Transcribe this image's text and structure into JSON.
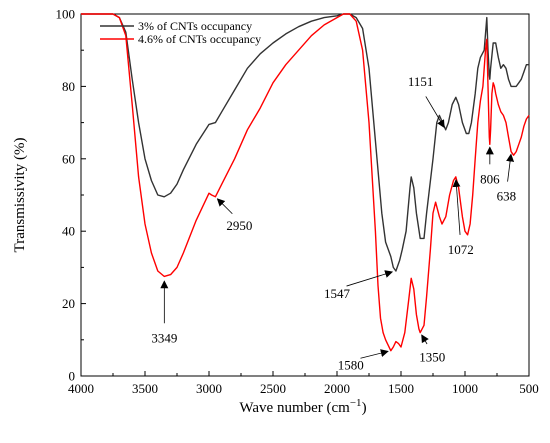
{
  "chart_data": {
    "type": "line",
    "title": "",
    "xlabel": "Wave number",
    "xlabel_unit": "(cm",
    "xlabel_unit_exp": "−1",
    "xlabel_unit_close": ")",
    "ylabel": "Transmissivity (%)",
    "xlim": [
      4000,
      500
    ],
    "ylim": [
      0,
      100
    ],
    "x_reversed": true,
    "x_ticks": [
      4000,
      3500,
      3000,
      2500,
      2000,
      1500,
      1000,
      500
    ],
    "y_ticks": [
      0,
      20,
      40,
      60,
      80,
      100
    ],
    "grid": false,
    "legend_position": "top-left",
    "series": [
      {
        "name": "3% of CNTs occupancy",
        "color": "#333333",
        "points": [
          [
            4000,
            100
          ],
          [
            3750,
            100
          ],
          [
            3700,
            99
          ],
          [
            3650,
            95
          ],
          [
            3600,
            82
          ],
          [
            3550,
            70
          ],
          [
            3500,
            60
          ],
          [
            3450,
            54
          ],
          [
            3400,
            50
          ],
          [
            3350,
            49.5
          ],
          [
            3300,
            50.5
          ],
          [
            3250,
            53
          ],
          [
            3200,
            57
          ],
          [
            3100,
            64
          ],
          [
            3000,
            69.5
          ],
          [
            2950,
            70
          ],
          [
            2900,
            73
          ],
          [
            2800,
            79
          ],
          [
            2700,
            85
          ],
          [
            2600,
            89
          ],
          [
            2500,
            92
          ],
          [
            2400,
            94.5
          ],
          [
            2300,
            96.5
          ],
          [
            2200,
            98
          ],
          [
            2100,
            99
          ],
          [
            2000,
            99.5
          ],
          [
            1950,
            100
          ],
          [
            1900,
            100
          ],
          [
            1850,
            99
          ],
          [
            1800,
            96
          ],
          [
            1750,
            85
          ],
          [
            1700,
            65
          ],
          [
            1650,
            45
          ],
          [
            1620,
            37
          ],
          [
            1580,
            33
          ],
          [
            1560,
            30
          ],
          [
            1540,
            29
          ],
          [
            1510,
            32
          ],
          [
            1490,
            35
          ],
          [
            1460,
            40
          ],
          [
            1430,
            52
          ],
          [
            1420,
            55
          ],
          [
            1400,
            52
          ],
          [
            1380,
            45
          ],
          [
            1350,
            38
          ],
          [
            1320,
            38
          ],
          [
            1300,
            45
          ],
          [
            1250,
            60
          ],
          [
            1220,
            70
          ],
          [
            1200,
            72
          ],
          [
            1151,
            68
          ],
          [
            1130,
            70
          ],
          [
            1100,
            75
          ],
          [
            1072,
            77
          ],
          [
            1050,
            75
          ],
          [
            1020,
            70
          ],
          [
            990,
            67
          ],
          [
            970,
            67
          ],
          [
            950,
            70
          ],
          [
            920,
            78
          ],
          [
            900,
            85
          ],
          [
            880,
            88
          ],
          [
            850,
            90
          ],
          [
            830,
            99
          ],
          [
            820,
            90
          ],
          [
            810,
            83
          ],
          [
            806,
            82
          ],
          [
            800,
            85
          ],
          [
            780,
            92
          ],
          [
            760,
            92
          ],
          [
            740,
            88
          ],
          [
            720,
            85
          ],
          [
            700,
            86
          ],
          [
            680,
            85
          ],
          [
            660,
            82
          ],
          [
            640,
            80
          ],
          [
            620,
            80
          ],
          [
            600,
            80
          ],
          [
            580,
            81
          ],
          [
            560,
            82
          ],
          [
            540,
            84
          ],
          [
            520,
            86
          ],
          [
            500,
            86
          ]
        ]
      },
      {
        "name": "4.6% of CNTs occupancy",
        "color": "#ff0000",
        "points": [
          [
            4000,
            100
          ],
          [
            3750,
            100
          ],
          [
            3700,
            99
          ],
          [
            3650,
            94
          ],
          [
            3600,
            75
          ],
          [
            3550,
            55
          ],
          [
            3500,
            42
          ],
          [
            3450,
            34
          ],
          [
            3400,
            29
          ],
          [
            3350,
            27.5
          ],
          [
            3300,
            28
          ],
          [
            3250,
            30
          ],
          [
            3200,
            34
          ],
          [
            3100,
            43
          ],
          [
            3000,
            50.5
          ],
          [
            2980,
            50
          ],
          [
            2950,
            49.5
          ],
          [
            2900,
            53
          ],
          [
            2800,
            60
          ],
          [
            2700,
            68
          ],
          [
            2600,
            74
          ],
          [
            2500,
            81
          ],
          [
            2400,
            86
          ],
          [
            2300,
            90
          ],
          [
            2200,
            94
          ],
          [
            2100,
            97
          ],
          [
            2000,
            99
          ],
          [
            1950,
            100
          ],
          [
            1900,
            100
          ],
          [
            1850,
            98
          ],
          [
            1800,
            90
          ],
          [
            1750,
            70
          ],
          [
            1700,
            40
          ],
          [
            1680,
            25
          ],
          [
            1660,
            16
          ],
          [
            1640,
            12
          ],
          [
            1620,
            10
          ],
          [
            1580,
            7
          ],
          [
            1560,
            8
          ],
          [
            1540,
            9.5
          ],
          [
            1520,
            9
          ],
          [
            1500,
            8
          ],
          [
            1470,
            12
          ],
          [
            1440,
            21
          ],
          [
            1420,
            27
          ],
          [
            1400,
            24
          ],
          [
            1380,
            17
          ],
          [
            1360,
            13
          ],
          [
            1350,
            12
          ],
          [
            1320,
            14
          ],
          [
            1300,
            22
          ],
          [
            1270,
            35
          ],
          [
            1250,
            45
          ],
          [
            1230,
            48
          ],
          [
            1200,
            44
          ],
          [
            1180,
            42
          ],
          [
            1150,
            44
          ],
          [
            1120,
            50
          ],
          [
            1090,
            54
          ],
          [
            1072,
            55
          ],
          [
            1050,
            52
          ],
          [
            1020,
            44
          ],
          [
            1000,
            40
          ],
          [
            980,
            39
          ],
          [
            960,
            42
          ],
          [
            940,
            50
          ],
          [
            920,
            60
          ],
          [
            900,
            70
          ],
          [
            880,
            76
          ],
          [
            860,
            80
          ],
          [
            840,
            90
          ],
          [
            830,
            93
          ],
          [
            820,
            80
          ],
          [
            810,
            66
          ],
          [
            806,
            64
          ],
          [
            800,
            68
          ],
          [
            790,
            78
          ],
          [
            780,
            81
          ],
          [
            770,
            80
          ],
          [
            760,
            78
          ],
          [
            740,
            75
          ],
          [
            720,
            73
          ],
          [
            700,
            72
          ],
          [
            680,
            70
          ],
          [
            660,
            66
          ],
          [
            640,
            62
          ],
          [
            620,
            61
          ],
          [
            600,
            62
          ],
          [
            580,
            64
          ],
          [
            560,
            66
          ],
          [
            540,
            69
          ],
          [
            520,
            71
          ],
          [
            500,
            72
          ]
        ]
      }
    ],
    "annotations": [
      {
        "label": "3349",
        "x": 3349,
        "y": 27
      },
      {
        "label": "2950",
        "x": 2950,
        "y": 49.5
      },
      {
        "label": "1547",
        "x": 1547,
        "y": 29
      },
      {
        "label": "1580",
        "x": 1580,
        "y": 7
      },
      {
        "label": "1350",
        "x": 1350,
        "y": 12
      },
      {
        "label": "1151",
        "x": 1151,
        "y": 68
      },
      {
        "label": "1072",
        "x": 1072,
        "y": 55
      },
      {
        "label": "806",
        "x": 806,
        "y": 64
      },
      {
        "label": "638",
        "x": 638,
        "y": 62
      }
    ]
  }
}
